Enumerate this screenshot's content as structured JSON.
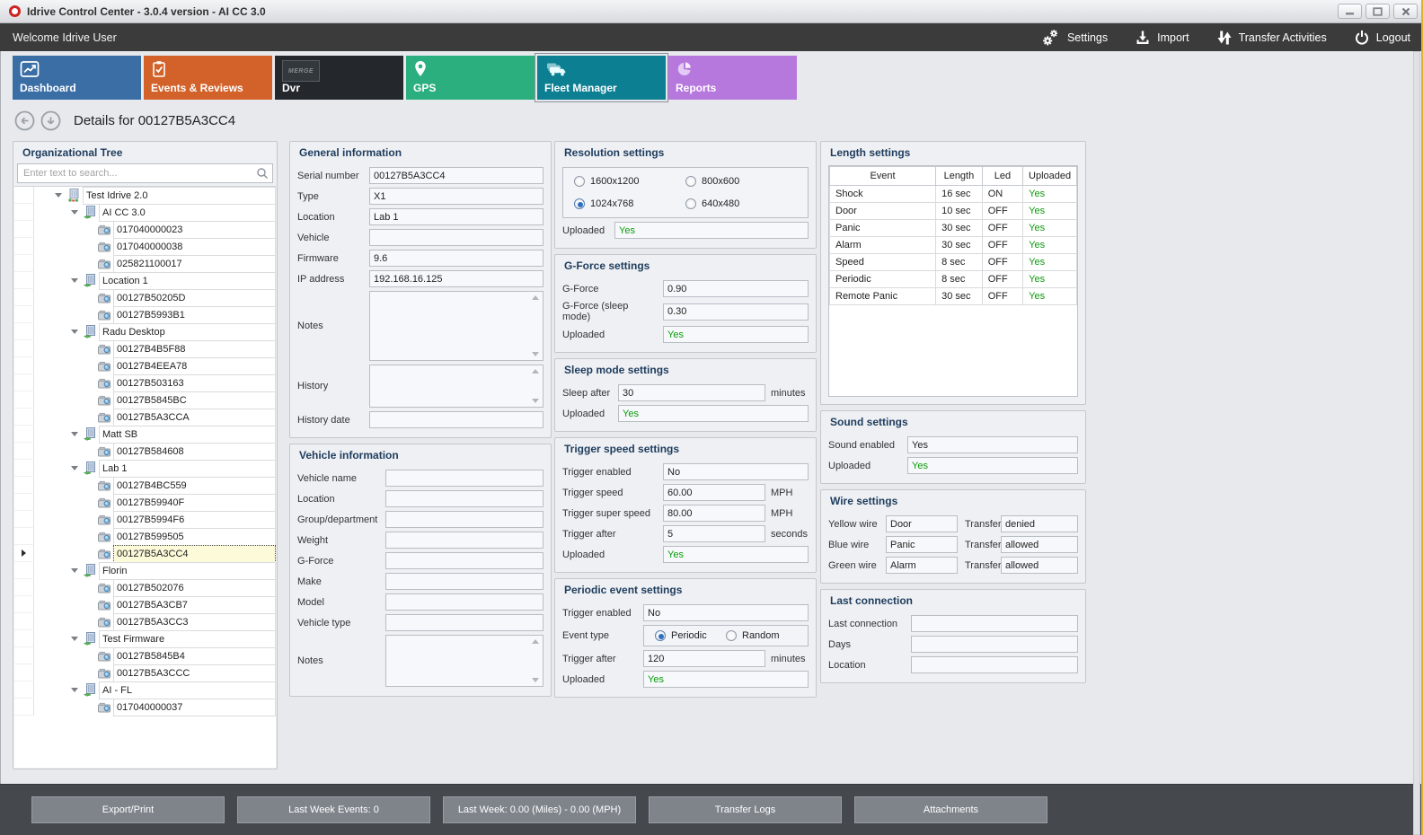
{
  "window": {
    "title": "Idrive Control Center - 3.0.4 version - AI CC 3.0"
  },
  "toolbar": {
    "welcome": "Welcome Idrive User",
    "actions": [
      {
        "id": "settings",
        "icon": "gears-icon",
        "label": "Settings"
      },
      {
        "id": "import",
        "icon": "import-icon",
        "label": "Import"
      },
      {
        "id": "transfer-activities",
        "icon": "transfer-icon",
        "label": "Transfer Activities"
      },
      {
        "id": "logout",
        "icon": "power-icon",
        "label": "Logout"
      }
    ]
  },
  "tabs": [
    {
      "id": "dashboard",
      "label": "Dashboard",
      "color": "#3A6EA5",
      "icon": "chart-icon",
      "selected": false
    },
    {
      "id": "events-reviews",
      "label": "Events & Reviews",
      "color": "#D2622A",
      "icon": "clipboard-icon",
      "selected": false
    },
    {
      "id": "dvr",
      "label": "Dvr",
      "color": "#24282C",
      "icon": "merge-logo-icon",
      "badge": "MERGE",
      "selected": false
    },
    {
      "id": "gps",
      "label": "GPS",
      "color": "#2BAF7E",
      "icon": "map-pin-icon",
      "selected": false
    },
    {
      "id": "fleet-manager",
      "label": "Fleet Manager",
      "color": "#0D7F92",
      "icon": "trucks-icon",
      "selected": true
    },
    {
      "id": "reports",
      "label": "Reports",
      "color": "#B678DD",
      "icon": "pie-chart-icon",
      "selected": false
    }
  ],
  "details": {
    "title": "Details for 00127B5A3CC4"
  },
  "tree": {
    "title": "Organizational Tree",
    "search_placeholder": "Enter text to search...",
    "items": [
      {
        "label": "Test Idrive 2.0",
        "depth": 0,
        "kind": "org",
        "expanded": true
      },
      {
        "label": "AI CC 3.0",
        "depth": 1,
        "kind": "group",
        "expanded": true
      },
      {
        "label": "017040000023",
        "depth": 2,
        "kind": "device"
      },
      {
        "label": "017040000038",
        "depth": 2,
        "kind": "device"
      },
      {
        "label": "025821100017",
        "depth": 2,
        "kind": "device"
      },
      {
        "label": "Location 1",
        "depth": 1,
        "kind": "group",
        "expanded": true
      },
      {
        "label": "00127B50205D",
        "depth": 2,
        "kind": "device"
      },
      {
        "label": "00127B5993B1",
        "depth": 2,
        "kind": "device"
      },
      {
        "label": "Radu Desktop",
        "depth": 1,
        "kind": "group",
        "expanded": true
      },
      {
        "label": "00127B4B5F88",
        "depth": 2,
        "kind": "device"
      },
      {
        "label": "00127B4EEA78",
        "depth": 2,
        "kind": "device"
      },
      {
        "label": "00127B503163",
        "depth": 2,
        "kind": "device"
      },
      {
        "label": "00127B5845BC",
        "depth": 2,
        "kind": "device"
      },
      {
        "label": "00127B5A3CCA",
        "depth": 2,
        "kind": "device"
      },
      {
        "label": "Matt SB",
        "depth": 1,
        "kind": "group",
        "expanded": true
      },
      {
        "label": "00127B584608",
        "depth": 2,
        "kind": "device"
      },
      {
        "label": "Lab 1",
        "depth": 1,
        "kind": "group",
        "expanded": true
      },
      {
        "label": "00127B4BC559",
        "depth": 2,
        "kind": "device"
      },
      {
        "label": "00127B59940F",
        "depth": 2,
        "kind": "device"
      },
      {
        "label": "00127B5994F6",
        "depth": 2,
        "kind": "device"
      },
      {
        "label": "00127B599505",
        "depth": 2,
        "kind": "device"
      },
      {
        "label": "00127B5A3CC4",
        "depth": 2,
        "kind": "device",
        "selected": true
      },
      {
        "label": "Florin",
        "depth": 1,
        "kind": "group",
        "expanded": true
      },
      {
        "label": "00127B502076",
        "depth": 2,
        "kind": "device"
      },
      {
        "label": "00127B5A3CB7",
        "depth": 2,
        "kind": "device"
      },
      {
        "label": "00127B5A3CC3",
        "depth": 2,
        "kind": "device"
      },
      {
        "label": "Test Firmware",
        "depth": 1,
        "kind": "group",
        "expanded": true
      },
      {
        "label": "00127B5845B4",
        "depth": 2,
        "kind": "device"
      },
      {
        "label": "00127B5A3CCC",
        "depth": 2,
        "kind": "device"
      },
      {
        "label": "AI - FL",
        "depth": 1,
        "kind": "group",
        "expanded": true
      },
      {
        "label": "017040000037",
        "depth": 2,
        "kind": "device"
      }
    ]
  },
  "columns": [
    {
      "panels": [
        {
          "id": "general-information",
          "title": "General information",
          "fields": [
            {
              "t": "input",
              "label": "Serial number",
              "value": "00127B5A3CC4"
            },
            {
              "t": "input",
              "label": "Type",
              "value": "X1"
            },
            {
              "t": "input",
              "label": "Location",
              "value": "Lab 1"
            },
            {
              "t": "input",
              "label": "Vehicle",
              "value": ""
            },
            {
              "t": "input",
              "label": "Firmware",
              "value": "9.6"
            },
            {
              "t": "input",
              "label": "IP address",
              "value": "192.168.16.125"
            },
            {
              "t": "textarea",
              "label": "Notes",
              "value": ""
            },
            {
              "t": "textarea",
              "label": "History",
              "value": ""
            },
            {
              "t": "input",
              "label": "History date",
              "value": ""
            }
          ]
        },
        {
          "id": "vehicle-information",
          "title": "Vehicle information",
          "fields": [
            {
              "t": "input",
              "label": "Vehicle name",
              "value": ""
            },
            {
              "t": "input",
              "label": "Location",
              "value": ""
            },
            {
              "t": "input",
              "label": "Group/department",
              "value": ""
            },
            {
              "t": "input",
              "label": "Weight",
              "value": ""
            },
            {
              "t": "input",
              "label": "G-Force",
              "value": ""
            },
            {
              "t": "input",
              "label": "Make",
              "value": ""
            },
            {
              "t": "input",
              "label": "Model",
              "value": ""
            },
            {
              "t": "input",
              "label": "Vehicle type",
              "value": ""
            },
            {
              "t": "textarea",
              "label": "Notes",
              "value": ""
            }
          ]
        }
      ]
    },
    {
      "panels": [
        {
          "id": "resolution-settings",
          "title": "Resolution settings",
          "fields": [
            {
              "t": "radiogrid",
              "options": [
                {
                  "label": "1600x1200",
                  "selected": false
                },
                {
                  "label": "800x600",
                  "selected": false
                },
                {
                  "label": "1024x768",
                  "selected": true
                },
                {
                  "label": "640x480",
                  "selected": false
                }
              ]
            },
            {
              "t": "input",
              "label": "Uploaded",
              "value": "Yes",
              "green": true
            }
          ]
        },
        {
          "id": "g-force-settings",
          "title": "G-Force settings",
          "fields": [
            {
              "t": "input",
              "label": "G-Force",
              "value": "0.90"
            },
            {
              "t": "input",
              "label": "G-Force (sleep mode)",
              "value": "0.30"
            },
            {
              "t": "input",
              "label": "Uploaded",
              "value": "Yes",
              "green": true
            }
          ]
        },
        {
          "id": "sleep-mode-settings",
          "title": "Sleep mode settings",
          "fields": [
            {
              "t": "unit",
              "label": "Sleep after",
              "value": "30",
              "unit": "minutes"
            },
            {
              "t": "input",
              "label": "Uploaded",
              "value": "Yes",
              "green": true
            }
          ]
        },
        {
          "id": "trigger-speed-settings",
          "title": "Trigger speed settings",
          "fields": [
            {
              "t": "input",
              "label": "Trigger enabled",
              "value": "No"
            },
            {
              "t": "unit",
              "label": "Trigger speed",
              "value": "60.00",
              "unit": "MPH"
            },
            {
              "t": "unit",
              "label": "Trigger super speed",
              "value": "80.00",
              "unit": "MPH"
            },
            {
              "t": "unit",
              "label": "Trigger after",
              "value": "5",
              "unit": "seconds"
            },
            {
              "t": "input",
              "label": "Uploaded",
              "value": "Yes",
              "green": true
            }
          ]
        },
        {
          "id": "periodic-event-settings",
          "title": "Periodic event settings",
          "fields": [
            {
              "t": "input",
              "label": "Trigger enabled",
              "value": "No"
            },
            {
              "t": "radioinline",
              "label": "Event type",
              "options": [
                {
                  "label": "Periodic",
                  "selected": true
                },
                {
                  "label": "Random",
                  "selected": false
                }
              ]
            },
            {
              "t": "unit",
              "label": "Trigger after",
              "value": "120",
              "unit": "minutes"
            },
            {
              "t": "input",
              "label": "Uploaded",
              "value": "Yes",
              "green": true
            }
          ]
        }
      ]
    },
    {
      "panels": [
        {
          "id": "length-settings",
          "title": "Length settings",
          "table": {
            "headers": [
              "Event",
              "Length",
              "Led",
              "Uploaded"
            ],
            "rows": [
              [
                "Shock",
                "16 sec",
                "ON",
                "Yes"
              ],
              [
                "Door",
                "10 sec",
                "OFF",
                "Yes"
              ],
              [
                "Panic",
                "30 sec",
                "OFF",
                "Yes"
              ],
              [
                "Alarm",
                "30 sec",
                "OFF",
                "Yes"
              ],
              [
                "Speed",
                "8 sec",
                "OFF",
                "Yes"
              ],
              [
                "Periodic",
                "8 sec",
                "OFF",
                "Yes"
              ],
              [
                "Remote Panic",
                "30 sec",
                "OFF",
                "Yes"
              ]
            ]
          }
        },
        {
          "id": "sound-settings",
          "title": "Sound settings",
          "fields": [
            {
              "t": "input",
              "label": "Sound enabled",
              "value": "Yes"
            },
            {
              "t": "input",
              "label": "Uploaded",
              "value": "Yes",
              "green": true
            }
          ]
        },
        {
          "id": "wire-settings",
          "title": "Wire settings",
          "fields": [
            {
              "t": "wire",
              "label": "Yellow wire",
              "value": "Door",
              "label2": "Transfer",
              "value2": "denied"
            },
            {
              "t": "wire",
              "label": "Blue wire",
              "value": "Panic",
              "label2": "Transfer",
              "value2": "allowed"
            },
            {
              "t": "wire",
              "label": "Green wire",
              "value": "Alarm",
              "label2": "Transfer",
              "value2": "allowed"
            }
          ]
        },
        {
          "id": "last-connection",
          "title": "Last connection",
          "fields": [
            {
              "t": "input",
              "label": "Last connection",
              "value": ""
            },
            {
              "t": "input",
              "label": "Days",
              "value": ""
            },
            {
              "t": "input",
              "label": "Location",
              "value": ""
            }
          ]
        }
      ]
    }
  ],
  "footer": {
    "buttons": [
      "Export/Print",
      "Last Week Events: 0",
      "Last Week: 0.00 (Miles) - 0.00 (MPH)",
      "Transfer Logs",
      "Attachments"
    ]
  }
}
